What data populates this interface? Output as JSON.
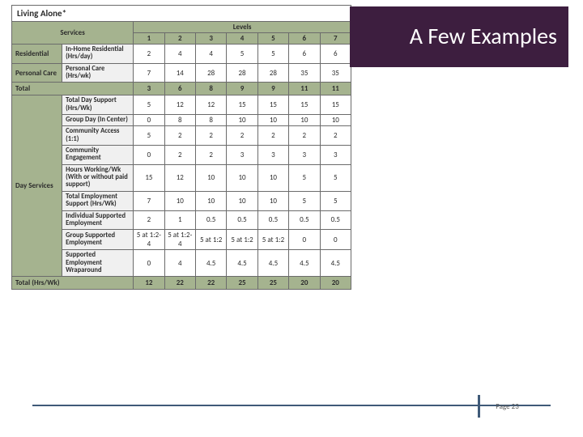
{
  "title": "A Few Examples",
  "page_label": "Page 23",
  "colors": {
    "title_bg": "#3d1e3f",
    "title_fg": "#ffffff",
    "header_bg": "#a5b38f",
    "border": "#6b6b6b",
    "footer_rule": "#3f5a78"
  },
  "table": {
    "caption": "Living Alone*",
    "services_label": "Services",
    "levels_label": "Levels",
    "level_headers": [
      "1",
      "2",
      "3",
      "4",
      "5",
      "6",
      "7"
    ],
    "sections": [
      {
        "group": "Residential",
        "rows": [
          {
            "label": "In-Home Residential (Hrs/day)",
            "values": [
              "2",
              "4",
              "4",
              "5",
              "5",
              "6",
              "6"
            ]
          }
        ]
      },
      {
        "group": "Personal Care",
        "rows": [
          {
            "label": "Personal Care (Hrs/wk)",
            "values": [
              "7",
              "14",
              "28",
              "28",
              "28",
              "35",
              "35"
            ]
          }
        ]
      }
    ],
    "total1": {
      "label": "Total",
      "values": [
        "3",
        "6",
        "8",
        "9",
        "9",
        "11",
        "11"
      ]
    },
    "day_services": {
      "group": "Day Services",
      "rows": [
        {
          "label": "Total Day Support (Hrs/Wk)",
          "values": [
            "5",
            "12",
            "12",
            "15",
            "15",
            "15",
            "15"
          ]
        },
        {
          "label": "Group Day (In Center)",
          "values": [
            "0",
            "8",
            "8",
            "10",
            "10",
            "10",
            "10"
          ]
        },
        {
          "label": "Community Access (1:1)",
          "values": [
            "5",
            "2",
            "2",
            "2",
            "2",
            "2",
            "2"
          ]
        },
        {
          "label": "Community Engagement",
          "values": [
            "0",
            "2",
            "2",
            "3",
            "3",
            "3",
            "3"
          ]
        },
        {
          "label": "Hours Working/Wk (With or without paid support)",
          "values": [
            "15",
            "12",
            "10",
            "10",
            "10",
            "5",
            "5"
          ]
        },
        {
          "label": "Total Employment Support (Hrs/Wk)",
          "values": [
            "7",
            "10",
            "10",
            "10",
            "10",
            "5",
            "5"
          ]
        },
        {
          "label": "Individual Supported Employment",
          "values": [
            "2",
            "1",
            "0.5",
            "0.5",
            "0.5",
            "0.5",
            "0.5"
          ]
        },
        {
          "label": "Group Supported Employment",
          "values": [
            "5 at 1:2-4",
            "5 at 1:2-4",
            "5 at 1:2",
            "5 at 1:2",
            "5 at 1:2",
            "0",
            "0"
          ]
        },
        {
          "label": "Supported Employment Wraparound",
          "values": [
            "0",
            "4",
            "4.5",
            "4.5",
            "4.5",
            "4.5",
            "4.5"
          ]
        }
      ]
    },
    "total2": {
      "label": "Total (Hrs/Wk)",
      "values": [
        "12",
        "22",
        "22",
        "25",
        "25",
        "20",
        "20"
      ]
    }
  }
}
